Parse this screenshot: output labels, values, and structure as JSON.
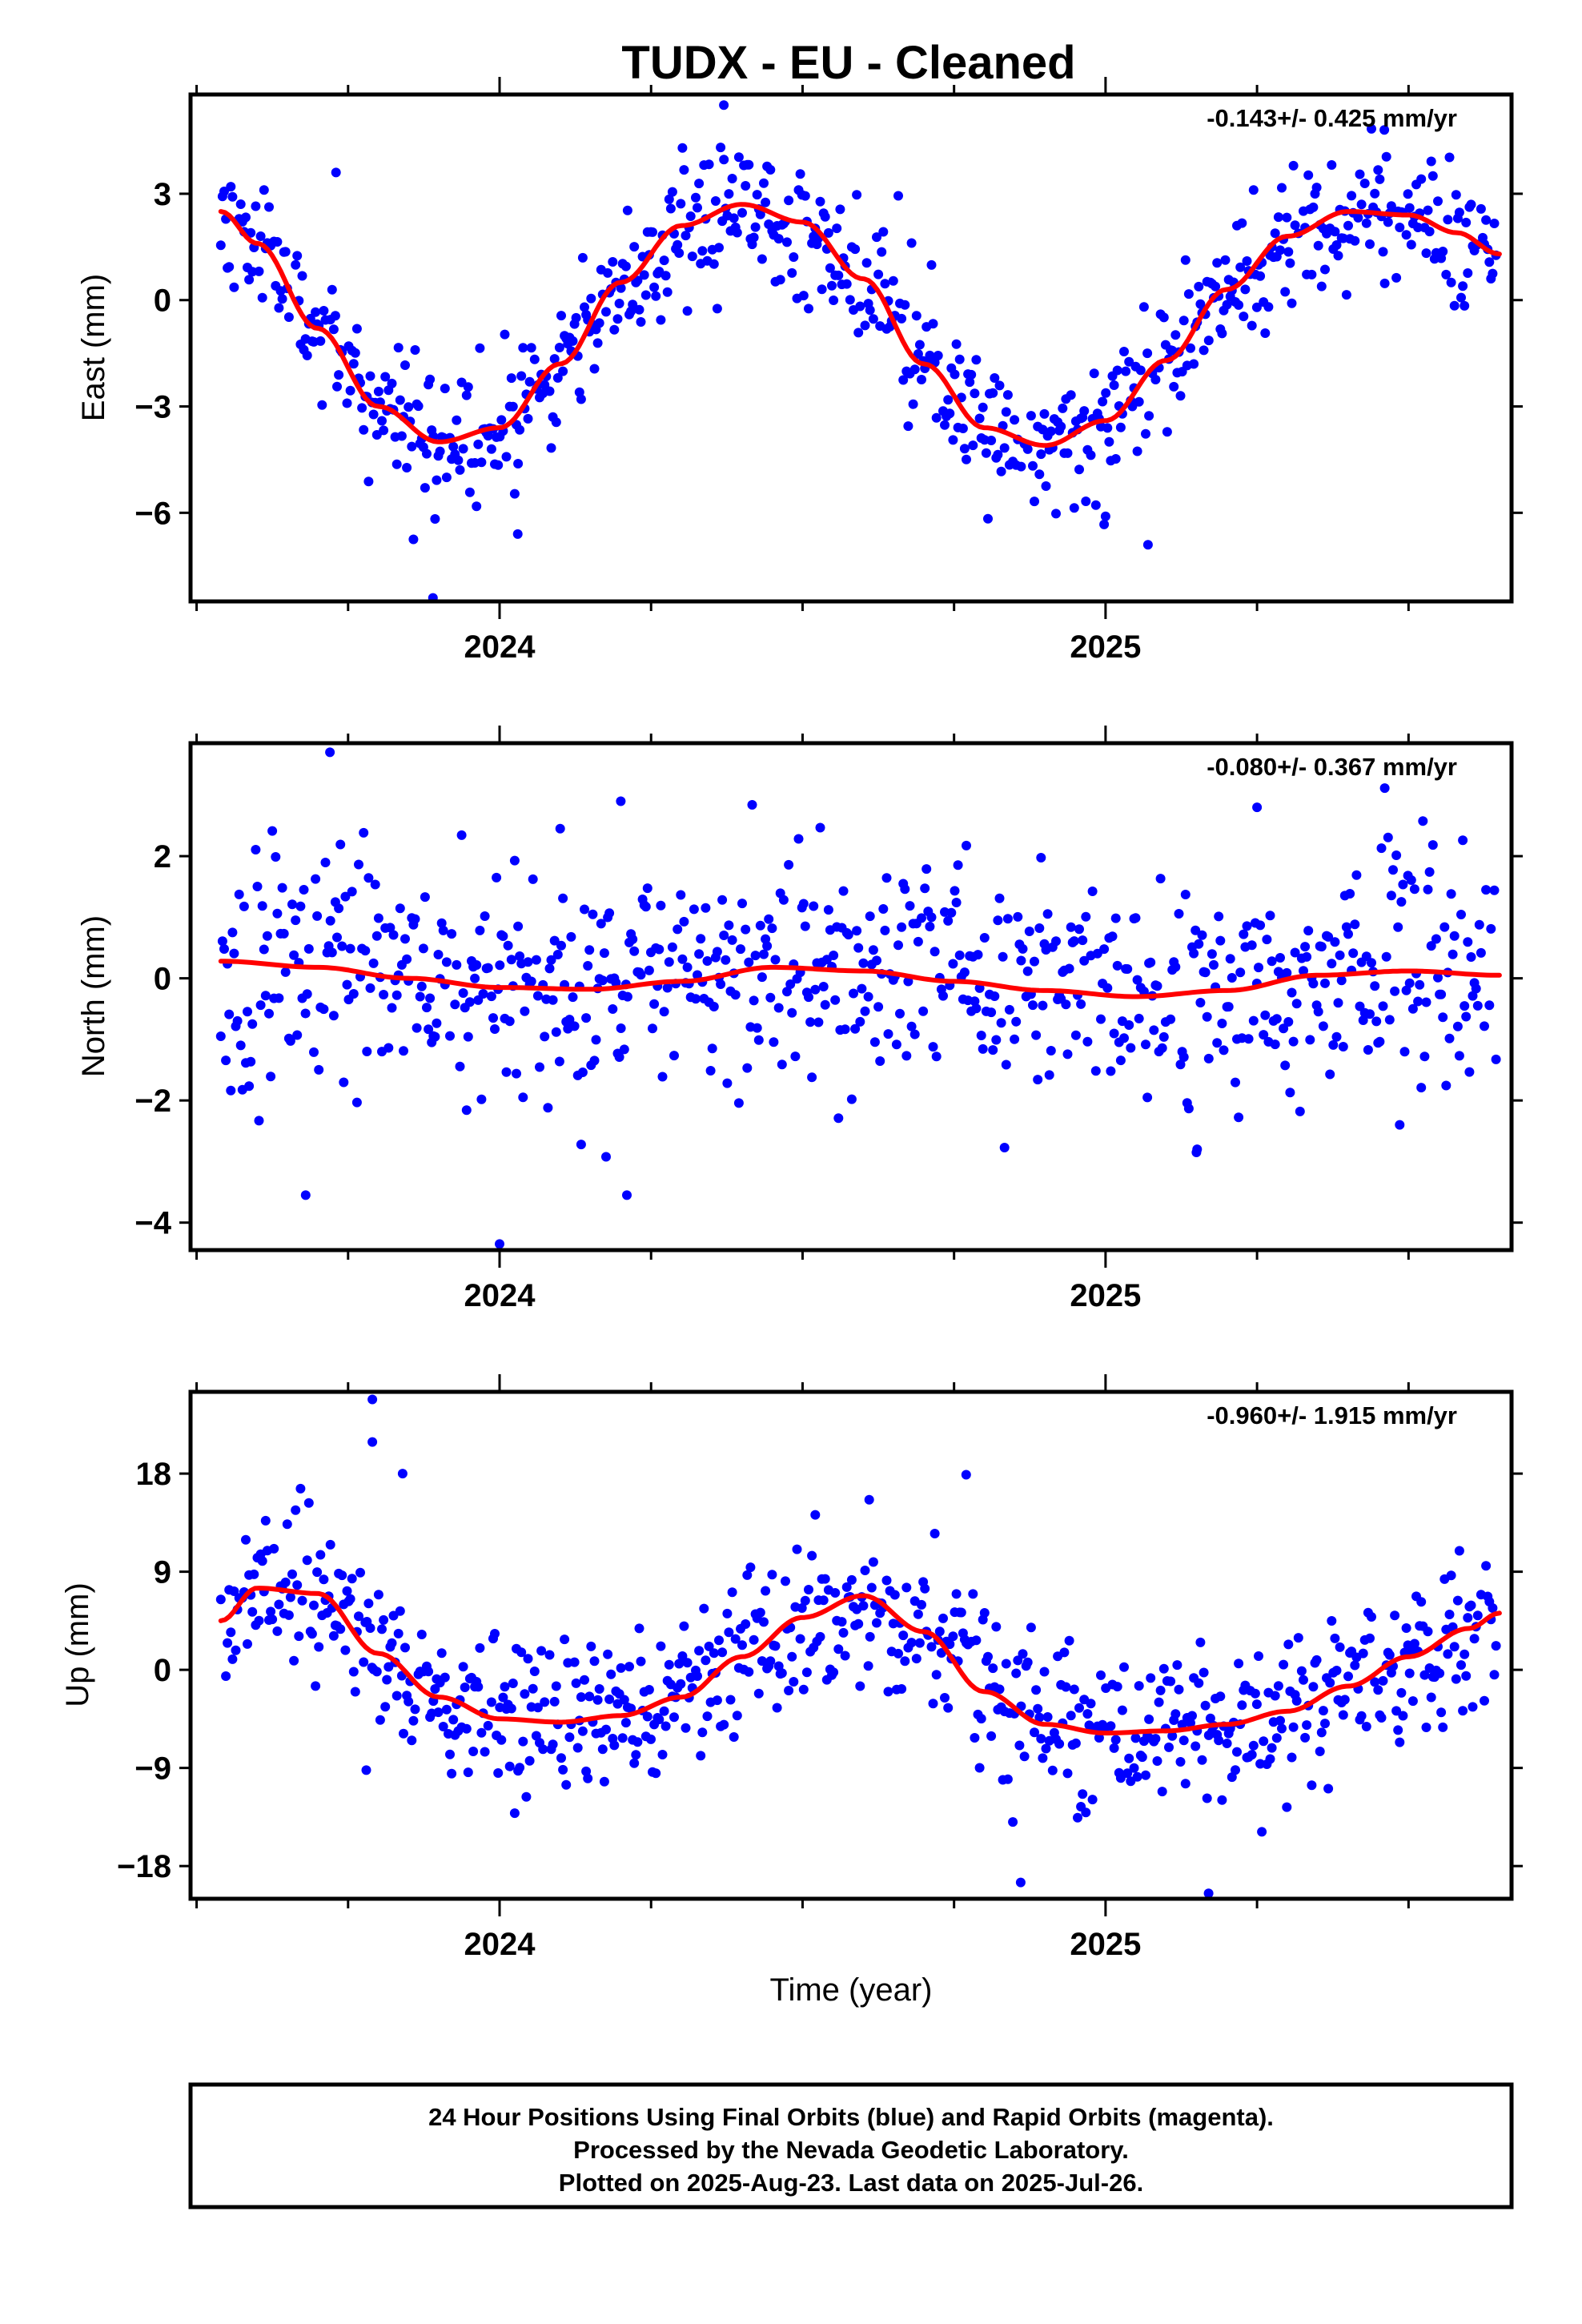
{
  "title": "TUDX  - EU - Cleaned",
  "colors": {
    "points": "#0000ff",
    "fit": "#ff0000",
    "frame": "#000000"
  },
  "footer": {
    "line1": "24 Hour Positions Using Final Orbits (blue) and Rapid Orbits (magenta).",
    "line2": "Processed by the Nevada Geodetic Laboratory.",
    "line3": "Plotted on 2025-Aug-23. Last data on 2025-Jul-26."
  },
  "chart_data": [
    {
      "type": "scatter",
      "name": "east",
      "ylabel": "East (mm)",
      "xlabel": "",
      "rate_text": "-0.143+/- 0.425 mm/yr",
      "xlim": [
        2023.49,
        2025.67
      ],
      "ylim": [
        -8.5,
        5.8
      ],
      "yticks": [
        3,
        0,
        -3,
        -6
      ],
      "xtick_labels": [
        2024,
        2025
      ],
      "x_minor_ticks": [
        2023.5,
        2023.75,
        2024.0,
        2024.25,
        2024.5,
        2024.75,
        2025.0,
        2025.25,
        2025.5
      ],
      "scatter_seed": 11,
      "scatter_noise_sd": 1.0,
      "scatter_outliers": [
        [
          2023.89,
          -8.4
        ],
        [
          2024.03,
          -6.6
        ],
        [
          2023.73,
          3.6
        ],
        [
          2024.37,
          5.5
        ],
        [
          2025.07,
          -6.9
        ],
        [
          2025.46,
          4.8
        ],
        [
          2025.0,
          -6.1
        ]
      ],
      "fit_curve": {
        "x": [
          2023.54,
          2023.6,
          2023.7,
          2023.8,
          2023.9,
          2024.0,
          2024.1,
          2024.2,
          2024.3,
          2024.4,
          2024.5,
          2024.6,
          2024.7,
          2024.8,
          2024.9,
          2025.0,
          2025.1,
          2025.2,
          2025.3,
          2025.4,
          2025.5,
          2025.58,
          2025.65
        ],
        "y": [
          2.5,
          1.6,
          -0.8,
          -3.0,
          -4.0,
          -3.6,
          -1.8,
          0.5,
          2.1,
          2.7,
          2.2,
          0.6,
          -1.8,
          -3.6,
          -4.1,
          -3.4,
          -1.7,
          0.3,
          1.8,
          2.5,
          2.4,
          1.9,
          1.3
        ]
      }
    },
    {
      "type": "scatter",
      "name": "north",
      "ylabel": "North (mm)",
      "xlabel": "",
      "rate_text": "-0.080+/- 0.367 mm/yr",
      "xlim": [
        2023.49,
        2025.67
      ],
      "ylim": [
        -4.45,
        3.85
      ],
      "yticks": [
        2,
        0,
        -2,
        -4
      ],
      "xtick_labels": [
        2024,
        2025
      ],
      "x_minor_ticks": [
        2023.5,
        2023.75,
        2024.0,
        2024.25,
        2024.5,
        2024.75,
        2025.0,
        2025.25,
        2025.5
      ],
      "scatter_seed": 23,
      "scatter_noise_sd": 0.95,
      "scatter_outliers": [
        [
          2023.72,
          3.7
        ],
        [
          2024.0,
          -4.35
        ],
        [
          2024.2,
          2.9
        ],
        [
          2023.68,
          -3.55
        ],
        [
          2024.21,
          -3.55
        ],
        [
          2025.15,
          -2.85
        ],
        [
          2025.25,
          2.8
        ],
        [
          2024.1,
          2.45
        ]
      ],
      "fit_curve": {
        "x": [
          2023.54,
          2023.7,
          2023.85,
          2024.0,
          2024.15,
          2024.3,
          2024.45,
          2024.6,
          2024.75,
          2024.9,
          2025.05,
          2025.2,
          2025.35,
          2025.5,
          2025.65
        ],
        "y": [
          0.28,
          0.18,
          0.0,
          -0.15,
          -0.18,
          -0.05,
          0.18,
          0.12,
          -0.05,
          -0.2,
          -0.3,
          -0.2,
          0.05,
          0.12,
          0.05
        ]
      }
    },
    {
      "type": "scatter",
      "name": "up",
      "ylabel": "Up (mm)",
      "xlabel": "Time (year)",
      "rate_text": "-0.960+/- 1.915 mm/yr",
      "xlim": [
        2023.49,
        2025.67
      ],
      "ylim": [
        -21,
        25.5
      ],
      "yticks": [
        18,
        9,
        0,
        -9,
        -18
      ],
      "xtick_labels": [
        2024,
        2025
      ],
      "x_minor_ticks": [
        2023.5,
        2023.75,
        2024.0,
        2024.25,
        2024.5,
        2024.75,
        2025.0,
        2025.25,
        2025.5
      ],
      "scatter_seed": 37,
      "scatter_noise_sd": 3.6,
      "scatter_outliers": [
        [
          2023.79,
          24.8
        ],
        [
          2023.79,
          20.9
        ],
        [
          2023.84,
          18.0
        ],
        [
          2024.86,
          -19.5
        ],
        [
          2025.17,
          -20.5
        ],
        [
          2024.77,
          17.9
        ],
        [
          2024.61,
          15.6
        ],
        [
          2023.78,
          -9.2
        ]
      ],
      "fit_curve": {
        "x": [
          2023.54,
          2023.6,
          2023.7,
          2023.8,
          2023.9,
          2024.0,
          2024.1,
          2024.2,
          2024.3,
          2024.4,
          2024.5,
          2024.6,
          2024.7,
          2024.8,
          2024.9,
          2025.0,
          2025.1,
          2025.2,
          2025.3,
          2025.4,
          2025.5,
          2025.6,
          2025.65
        ],
        "y": [
          4.5,
          7.5,
          7.0,
          1.5,
          -2.5,
          -4.5,
          -4.8,
          -4.2,
          -2.5,
          1.2,
          4.8,
          6.8,
          3.5,
          -2.0,
          -5.0,
          -5.8,
          -5.6,
          -5.0,
          -3.8,
          -1.5,
          1.2,
          3.8,
          5.2
        ]
      }
    }
  ]
}
